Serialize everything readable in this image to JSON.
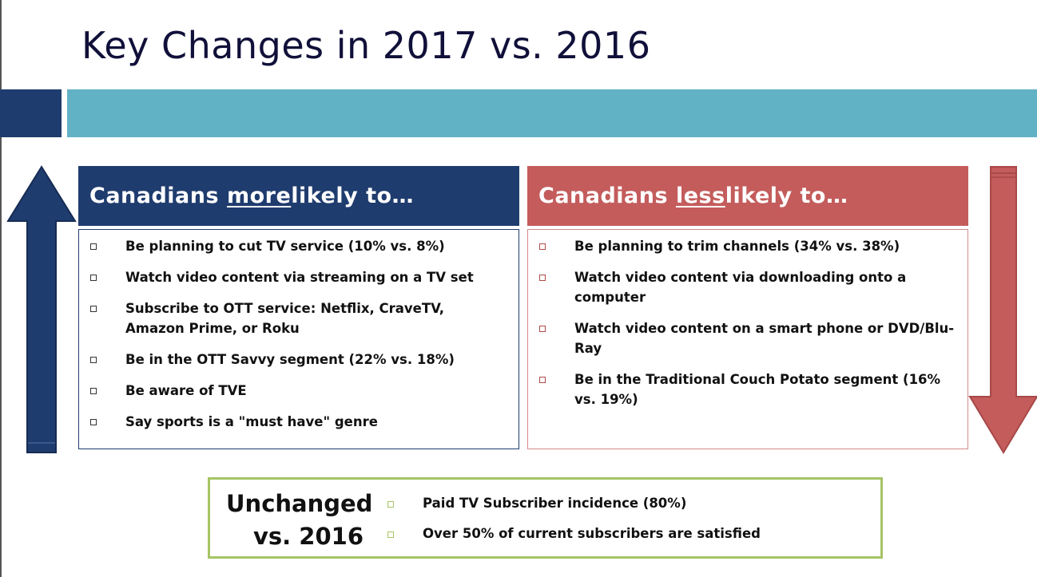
{
  "slide": {
    "title": "Key Changes in 2017 vs. 2016",
    "colors": {
      "navy": "#1f3c6e",
      "teal": "#62b2c6",
      "red": "#c45c5c",
      "green": "#a6c464"
    }
  },
  "more_panel": {
    "header_prefix": "Canadians ",
    "header_emphasis": "more",
    "header_suffix": " likely to…",
    "items": [
      "Be planning to cut TV service (10% vs. 8%)",
      "Watch video content via streaming on a TV set",
      "Subscribe to OTT service: Netflix, CraveTV, Amazon Prime, or Roku",
      "Be in the OTT Savvy segment (22% vs. 18%)",
      "Be aware of TVE",
      "Say sports is a \"must have\" genre"
    ]
  },
  "less_panel": {
    "header_prefix": "Canadians ",
    "header_emphasis": "less",
    "header_suffix": " likely to…",
    "items": [
      "Be planning to trim channels (34% vs. 38%)",
      "Watch video content via downloading onto a computer",
      "Watch video content on a smart phone or DVD/Blu-Ray",
      "Be in the Traditional Couch Potato segment (16% vs. 19%)"
    ]
  },
  "unchanged": {
    "title_line1": "Unchanged",
    "title_line2": "vs. 2016",
    "items": [
      "Paid TV Subscriber incidence (80%)",
      "Over 50% of current subscribers are satisfied"
    ]
  }
}
